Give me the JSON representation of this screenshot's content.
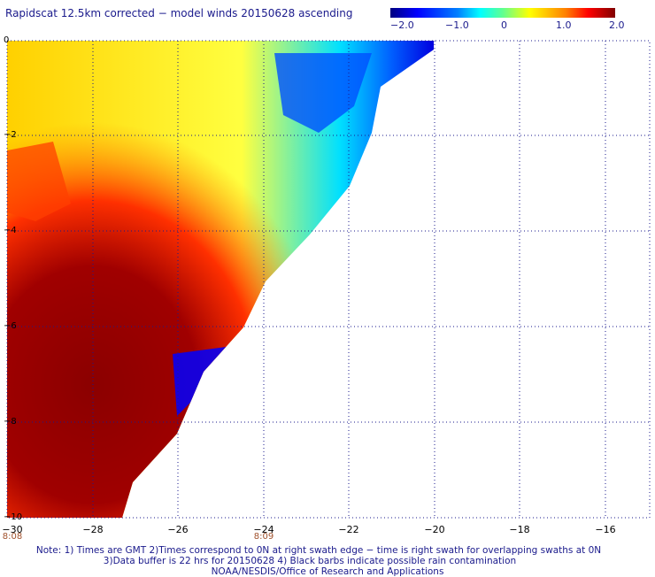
{
  "title": "Rapidscat 12.5km corrected − model winds 20150628 ascending",
  "colorbar": {
    "labels": [
      "−2.0",
      "−1.0",
      "0",
      "1.0",
      "2.0"
    ],
    "min": -2.0,
    "max": 2.0,
    "colors": [
      "#000080",
      "#0000ff",
      "#0080ff",
      "#00ffff",
      "#60ff90",
      "#ffff00",
      "#ff8000",
      "#ff0000",
      "#800000"
    ]
  },
  "y_labels": [
    "0",
    "−2",
    "−4",
    "−6",
    "−8",
    "−10"
  ],
  "x_labels": [
    "−30",
    "−28",
    "−26",
    "−24",
    "−22",
    "−20",
    "−18",
    "−16"
  ],
  "time_labels": [
    "8:08",
    "8:09"
  ],
  "notes": [
    "Note: 1) Times are GMT 2)Times correspond to 0N at right swath edge − time is right swath for overlapping swaths at 0N",
    "3)Data buffer is 22 hrs for 20150628 4) Black barbs indicate possible rain contamination",
    "NOAA/NESDIS/Office of Research and Applications"
  ]
}
